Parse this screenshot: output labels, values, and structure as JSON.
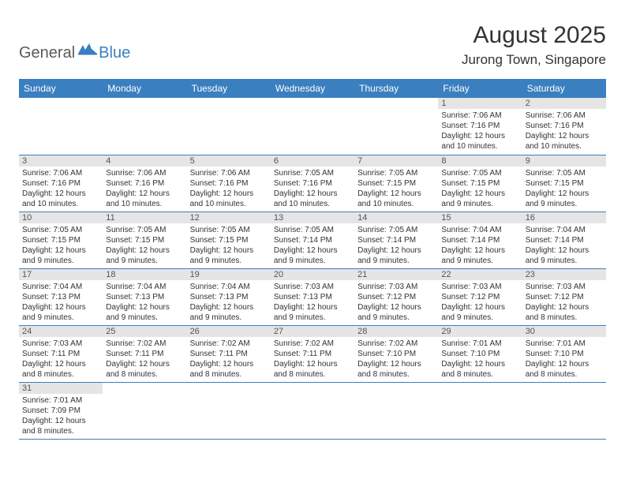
{
  "logo": {
    "general": "General",
    "blue": "Blue"
  },
  "title": "August 2025",
  "location": "Jurong Town, Singapore",
  "colors": {
    "header_bg": "#3a7fc0",
    "header_text": "#ffffff",
    "daynum_bg": "#e5e5e5",
    "border": "#3a7fc0",
    "text": "#333333",
    "logo_gray": "#5a5a5a",
    "logo_blue": "#3a7fc0"
  },
  "weekdays": [
    "Sunday",
    "Monday",
    "Tuesday",
    "Wednesday",
    "Thursday",
    "Friday",
    "Saturday"
  ],
  "weeks": [
    [
      null,
      null,
      null,
      null,
      null,
      {
        "n": "1",
        "sr": "7:06 AM",
        "ss": "7:16 PM",
        "dl": "12 hours and 10 minutes."
      },
      {
        "n": "2",
        "sr": "7:06 AM",
        "ss": "7:16 PM",
        "dl": "12 hours and 10 minutes."
      }
    ],
    [
      {
        "n": "3",
        "sr": "7:06 AM",
        "ss": "7:16 PM",
        "dl": "12 hours and 10 minutes."
      },
      {
        "n": "4",
        "sr": "7:06 AM",
        "ss": "7:16 PM",
        "dl": "12 hours and 10 minutes."
      },
      {
        "n": "5",
        "sr": "7:06 AM",
        "ss": "7:16 PM",
        "dl": "12 hours and 10 minutes."
      },
      {
        "n": "6",
        "sr": "7:05 AM",
        "ss": "7:16 PM",
        "dl": "12 hours and 10 minutes."
      },
      {
        "n": "7",
        "sr": "7:05 AM",
        "ss": "7:15 PM",
        "dl": "12 hours and 10 minutes."
      },
      {
        "n": "8",
        "sr": "7:05 AM",
        "ss": "7:15 PM",
        "dl": "12 hours and 9 minutes."
      },
      {
        "n": "9",
        "sr": "7:05 AM",
        "ss": "7:15 PM",
        "dl": "12 hours and 9 minutes."
      }
    ],
    [
      {
        "n": "10",
        "sr": "7:05 AM",
        "ss": "7:15 PM",
        "dl": "12 hours and 9 minutes."
      },
      {
        "n": "11",
        "sr": "7:05 AM",
        "ss": "7:15 PM",
        "dl": "12 hours and 9 minutes."
      },
      {
        "n": "12",
        "sr": "7:05 AM",
        "ss": "7:15 PM",
        "dl": "12 hours and 9 minutes."
      },
      {
        "n": "13",
        "sr": "7:05 AM",
        "ss": "7:14 PM",
        "dl": "12 hours and 9 minutes."
      },
      {
        "n": "14",
        "sr": "7:05 AM",
        "ss": "7:14 PM",
        "dl": "12 hours and 9 minutes."
      },
      {
        "n": "15",
        "sr": "7:04 AM",
        "ss": "7:14 PM",
        "dl": "12 hours and 9 minutes."
      },
      {
        "n": "16",
        "sr": "7:04 AM",
        "ss": "7:14 PM",
        "dl": "12 hours and 9 minutes."
      }
    ],
    [
      {
        "n": "17",
        "sr": "7:04 AM",
        "ss": "7:13 PM",
        "dl": "12 hours and 9 minutes."
      },
      {
        "n": "18",
        "sr": "7:04 AM",
        "ss": "7:13 PM",
        "dl": "12 hours and 9 minutes."
      },
      {
        "n": "19",
        "sr": "7:04 AM",
        "ss": "7:13 PM",
        "dl": "12 hours and 9 minutes."
      },
      {
        "n": "20",
        "sr": "7:03 AM",
        "ss": "7:13 PM",
        "dl": "12 hours and 9 minutes."
      },
      {
        "n": "21",
        "sr": "7:03 AM",
        "ss": "7:12 PM",
        "dl": "12 hours and 9 minutes."
      },
      {
        "n": "22",
        "sr": "7:03 AM",
        "ss": "7:12 PM",
        "dl": "12 hours and 9 minutes."
      },
      {
        "n": "23",
        "sr": "7:03 AM",
        "ss": "7:12 PM",
        "dl": "12 hours and 8 minutes."
      }
    ],
    [
      {
        "n": "24",
        "sr": "7:03 AM",
        "ss": "7:11 PM",
        "dl": "12 hours and 8 minutes."
      },
      {
        "n": "25",
        "sr": "7:02 AM",
        "ss": "7:11 PM",
        "dl": "12 hours and 8 minutes."
      },
      {
        "n": "26",
        "sr": "7:02 AM",
        "ss": "7:11 PM",
        "dl": "12 hours and 8 minutes."
      },
      {
        "n": "27",
        "sr": "7:02 AM",
        "ss": "7:11 PM",
        "dl": "12 hours and 8 minutes."
      },
      {
        "n": "28",
        "sr": "7:02 AM",
        "ss": "7:10 PM",
        "dl": "12 hours and 8 minutes."
      },
      {
        "n": "29",
        "sr": "7:01 AM",
        "ss": "7:10 PM",
        "dl": "12 hours and 8 minutes."
      },
      {
        "n": "30",
        "sr": "7:01 AM",
        "ss": "7:10 PM",
        "dl": "12 hours and 8 minutes."
      }
    ],
    [
      {
        "n": "31",
        "sr": "7:01 AM",
        "ss": "7:09 PM",
        "dl": "12 hours and 8 minutes."
      },
      null,
      null,
      null,
      null,
      null,
      null
    ]
  ],
  "labels": {
    "sunrise": "Sunrise:",
    "sunset": "Sunset:",
    "daylight": "Daylight:"
  }
}
